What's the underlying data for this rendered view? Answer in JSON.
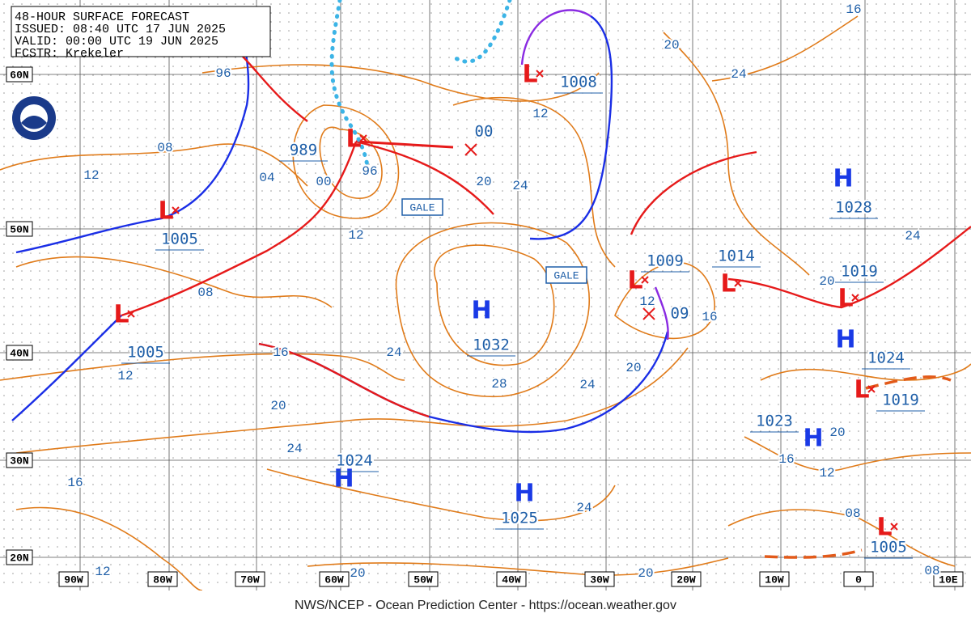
{
  "header": {
    "lines": [
      "48-HOUR SURFACE FORECAST",
      "ISSUED: 08:40 UTC 17 JUN 2025",
      "VALID:  00:00 UTC 19 JUN 2025",
      "FCSTR:  Krekeler"
    ]
  },
  "lat_labels": [
    "60N",
    "50N",
    "40N",
    "30N",
    "20N"
  ],
  "lon_labels": [
    "90W",
    "80W",
    "70W",
    "60W",
    "50W",
    "40W",
    "30W",
    "20W",
    "10W",
    "0",
    "10E"
  ],
  "centers": [
    {
      "type": "L",
      "pressure": "989"
    },
    {
      "type": "L",
      "pressure": "1005"
    },
    {
      "type": "L",
      "pressure": "1005"
    },
    {
      "type": "L",
      "pressure": "1008"
    },
    {
      "type": "H",
      "pressure": "1032"
    },
    {
      "type": "L",
      "pressure": "1009"
    },
    {
      "type": "L",
      "pressure": "1014"
    },
    {
      "type": "H",
      "pressure": "1028"
    },
    {
      "type": "L",
      "pressure": "1019"
    },
    {
      "type": "H",
      "pressure": "1024"
    },
    {
      "type": "L",
      "pressure": "1019"
    },
    {
      "type": "H",
      "pressure": "1023"
    },
    {
      "type": "H",
      "pressure": "1024"
    },
    {
      "type": "H",
      "pressure": "1025"
    },
    {
      "type": "L",
      "pressure": "1005"
    }
  ],
  "future_positions": [
    "00",
    "09"
  ],
  "isobar_labels": [
    "96",
    "08",
    "12",
    "04",
    "00",
    "96",
    "12",
    "08",
    "20",
    "24",
    "12",
    "20",
    "24",
    "16",
    "24",
    "20",
    "16",
    "12",
    "20",
    "24",
    "28",
    "24",
    "16",
    "12",
    "20",
    "24",
    "16",
    "12",
    "20",
    "20",
    "24",
    "20",
    "16",
    "12",
    "08",
    "08"
  ],
  "warnings": [
    "GALE",
    "GALE"
  ],
  "footer": "NWS/NCEP - Ocean Prediction Center - https://ocean.weather.gov"
}
